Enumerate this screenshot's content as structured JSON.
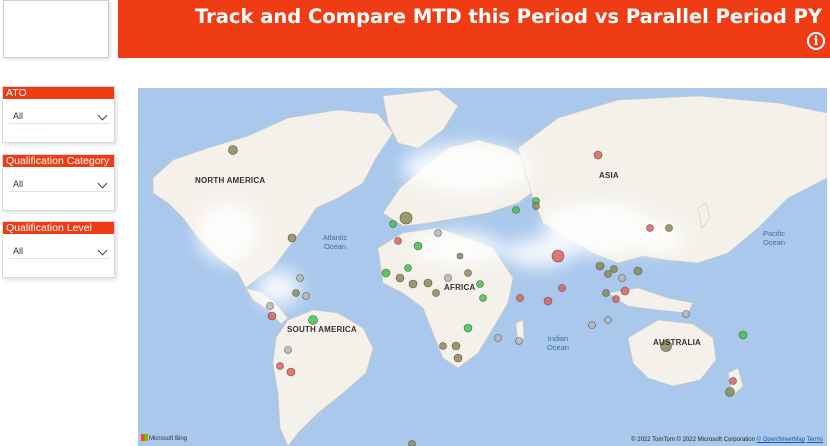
{
  "header": {
    "title": "Track and Compare MTD this Period vs Parallel Period PY",
    "info_icon": "info-circle-icon",
    "color": "#f03c14"
  },
  "filters": [
    {
      "label": "ATO",
      "value": "All"
    },
    {
      "label": "Qualification Category",
      "value": "All"
    },
    {
      "label": "Qualification Level",
      "value": "All"
    }
  ],
  "map": {
    "labels": {
      "north_america": "NORTH AMERICA",
      "south_america": "SOUTH AMERICA",
      "africa": "AFRICA",
      "asia": "ASIA",
      "australia": "AUSTRALIA"
    },
    "oceans": {
      "atlantic": "Atlantic Ocean",
      "indian": "Indian Ocean",
      "pacific": "Pacific Ocean"
    },
    "attribution": {
      "text": "© 2022 TomTom  © 2022 Microsoft Corporation",
      "link1": "© OpenStreetMap",
      "link2": "Terms"
    },
    "provider": "Microsoft Bing",
    "colors": {
      "ocean": "#a9c8ec",
      "land": "#f4f1ea",
      "bubble_green": "#3cc54a",
      "bubble_olive": "#8e8a52",
      "bubble_red": "#e0605a",
      "bubble_gray": "#b7b7b7"
    }
  }
}
